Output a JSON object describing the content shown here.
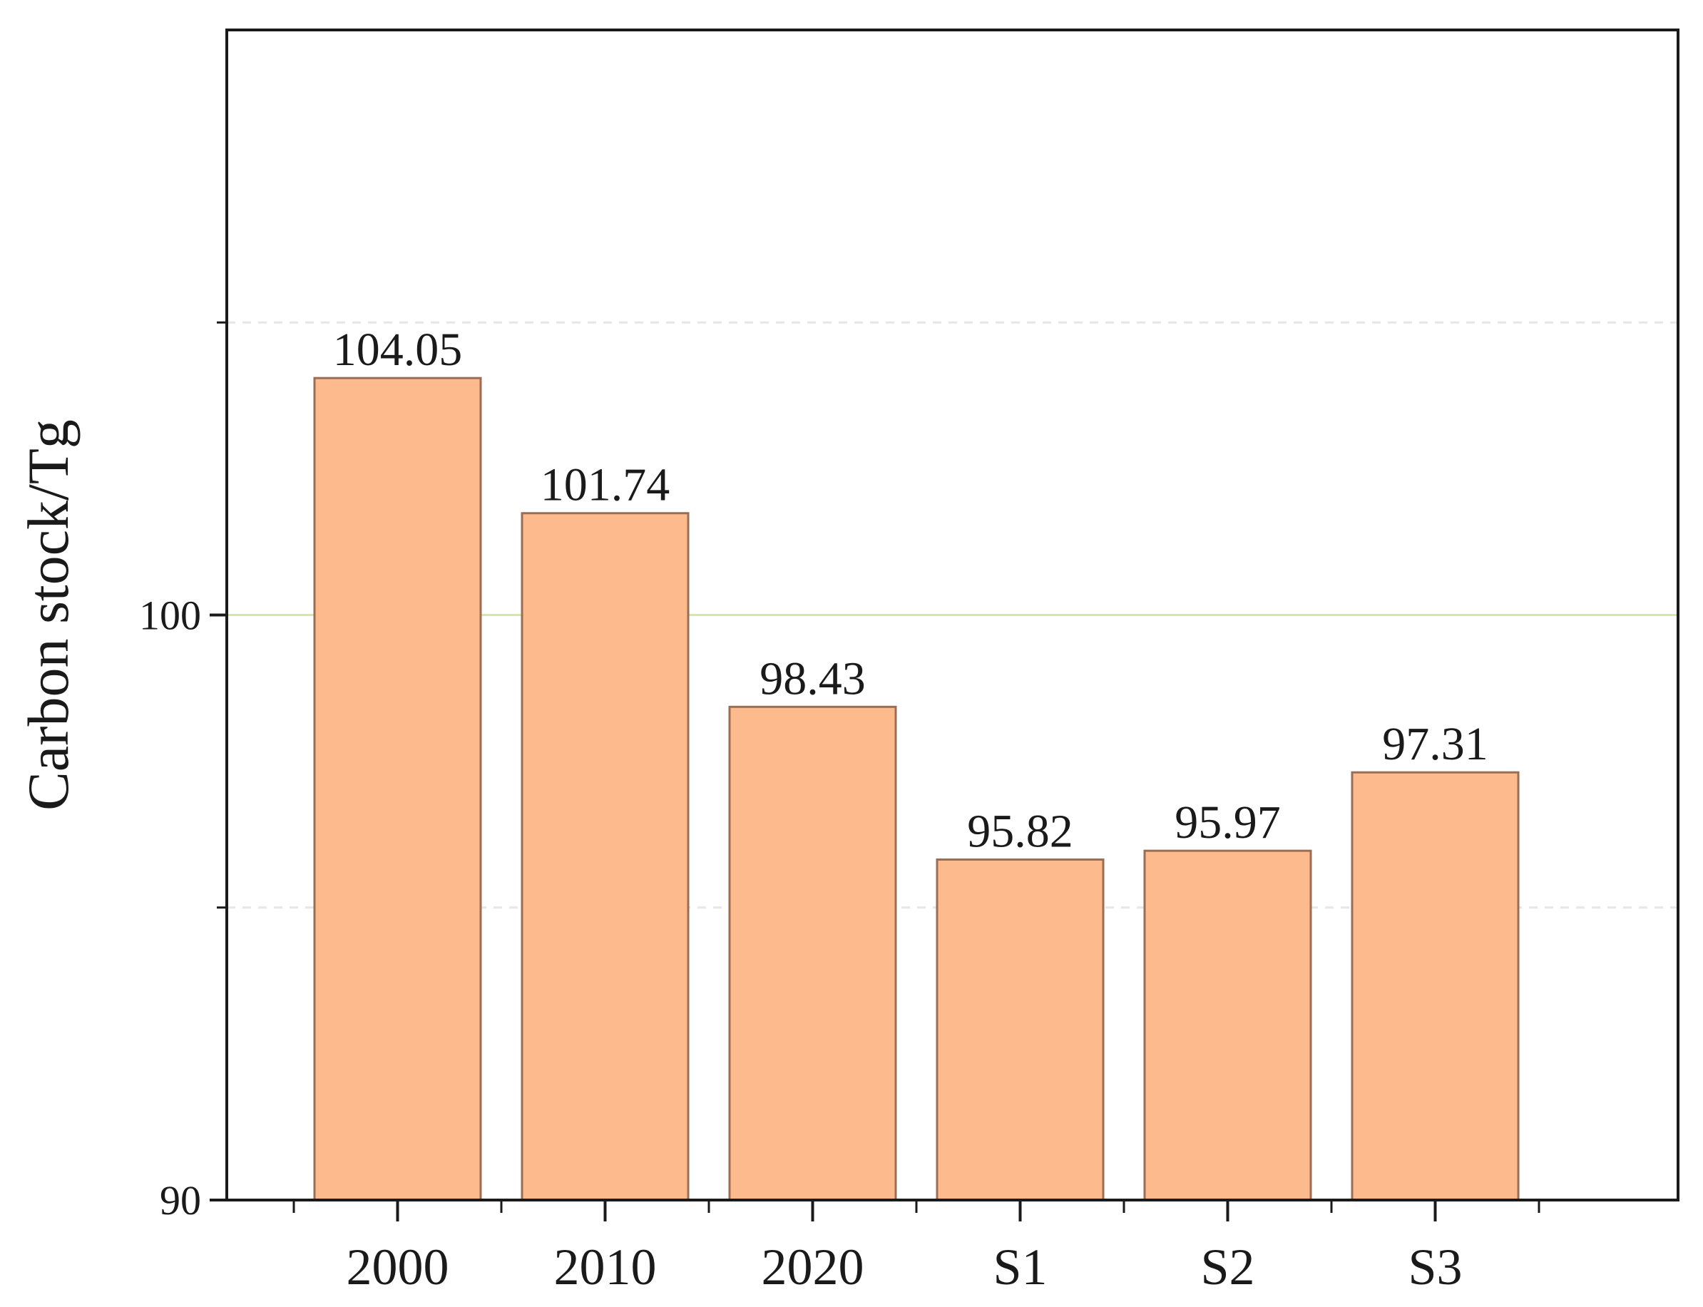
{
  "chart_data": {
    "type": "bar",
    "categories": [
      "2000",
      "2010",
      "2020",
      "S1",
      "S2",
      "S3"
    ],
    "values": [
      104.05,
      101.74,
      98.43,
      95.82,
      95.97,
      97.31
    ],
    "data_labels": [
      "104.05",
      "101.74",
      "98.43",
      "95.82",
      "95.97",
      "97.31"
    ],
    "title": "",
    "xlabel": "",
    "ylabel": "Carbon stock/Tg",
    "ylim": [
      90,
      110
    ],
    "yticks_labeled": [
      {
        "value": 90,
        "label": "90"
      },
      {
        "value": 100,
        "label": "100"
      }
    ],
    "minor_gridlines": [
      95,
      105
    ],
    "reference_line": 100,
    "grid": true,
    "legend": "none",
    "colors": {
      "bar_fill": "#FDBA8C",
      "bar_stroke": "#9a6e55",
      "reference_line": "#d5e6a6",
      "gridline": "#e6e6e6",
      "axis": "#1a1a1a"
    }
  }
}
